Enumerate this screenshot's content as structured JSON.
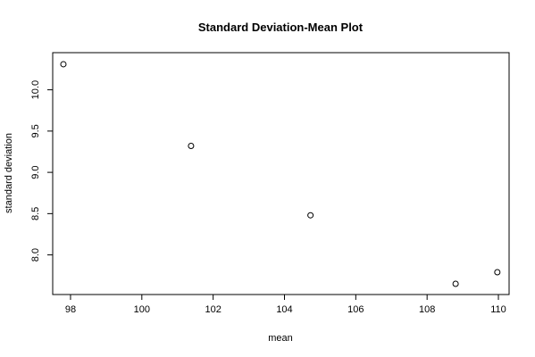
{
  "chart_data": {
    "type": "scatter",
    "title": "Standard Deviation-Mean Plot",
    "xlabel": "mean",
    "ylabel": "standard deviation",
    "xlim": [
      97.5,
      110.3
    ],
    "ylim": [
      7.52,
      10.45
    ],
    "xticks": [
      98,
      100,
      102,
      104,
      106,
      108,
      110
    ],
    "yticks": [
      8.0,
      8.5,
      9.0,
      9.5,
      10.0
    ],
    "ytick_labels": [
      "8.0",
      "8.5",
      "9.0",
      "9.5",
      "10.0"
    ],
    "grid": false,
    "marker": "open-circle",
    "points": [
      {
        "x": 97.8,
        "y": 10.31
      },
      {
        "x": 101.38,
        "y": 9.32
      },
      {
        "x": 104.73,
        "y": 8.48
      },
      {
        "x": 108.8,
        "y": 7.65
      },
      {
        "x": 109.97,
        "y": 7.79
      }
    ]
  }
}
